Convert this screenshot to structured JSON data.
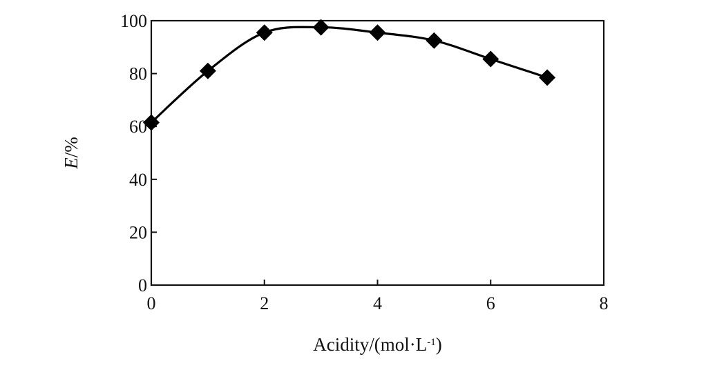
{
  "chart_data": {
    "type": "line",
    "title": "",
    "xlabel": "Acidity/(mol·L",
    "xlabel_superscript": "-1",
    "xlabel_close": ")",
    "ylabel_italic": "E",
    "ylabel_rest": "/%",
    "xlim": [
      0,
      8
    ],
    "ylim": [
      0,
      100
    ],
    "x_ticks": [
      "0",
      "2",
      "4",
      "6",
      "8"
    ],
    "y_ticks": [
      "0",
      "20",
      "40",
      "60",
      "80",
      "100"
    ],
    "grid": false,
    "legend": "none",
    "marker": "diamond",
    "line_color": "#000000",
    "series": [
      {
        "x": [
          0,
          1,
          2,
          3,
          4,
          5,
          6,
          7
        ],
        "y": [
          61.5,
          81,
          95.5,
          97.5,
          95.5,
          92.5,
          85.5,
          78.5
        ]
      }
    ]
  }
}
